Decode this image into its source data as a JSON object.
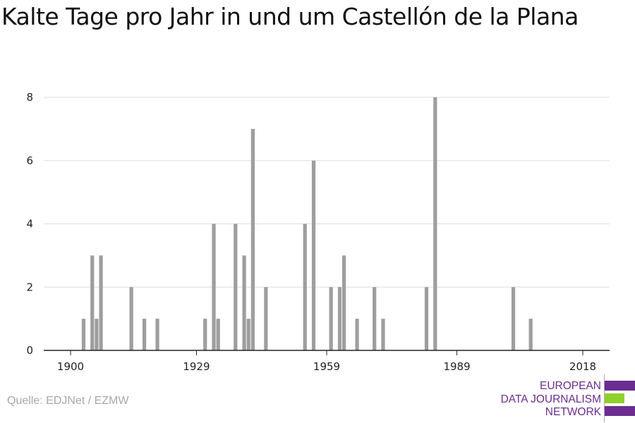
{
  "header": {
    "title": "Kalte Tage pro Jahr in und um Castellón de la Plana"
  },
  "footer": {
    "source": "Quelle: EDJNet / EZMW",
    "logo_lines": [
      "EUROPEAN",
      "DATA JOURNALISM",
      "NETWORK"
    ]
  },
  "colors": {
    "bar": "#9e9e9e",
    "grid": "#dddddd",
    "axis": "#222222",
    "logo_purple": "#6b2d8f",
    "logo_green": "#8fd12b"
  },
  "chart_data": {
    "type": "bar",
    "title": "Kalte Tage pro Jahr in und um Castellón de la Plana",
    "xlabel": "",
    "ylabel": "",
    "xlim": [
      1900,
      2018
    ],
    "ylim": [
      0,
      8
    ],
    "yticks": [
      0,
      2,
      4,
      6,
      8
    ],
    "xticks": [
      1900,
      1929,
      1959,
      1989,
      2018
    ],
    "grid": true,
    "x": [
      1903,
      1905,
      1906,
      1907,
      1914,
      1917,
      1920,
      1931,
      1933,
      1934,
      1938,
      1940,
      1941,
      1942,
      1945,
      1954,
      1956,
      1960,
      1962,
      1963,
      1966,
      1970,
      1972,
      1982,
      1984,
      2002,
      2006
    ],
    "values": [
      1,
      3,
      1,
      3,
      2,
      1,
      1,
      1,
      4,
      1,
      4,
      3,
      1,
      7,
      2,
      4,
      6,
      2,
      2,
      3,
      1,
      2,
      1,
      2,
      8,
      2,
      1
    ]
  }
}
